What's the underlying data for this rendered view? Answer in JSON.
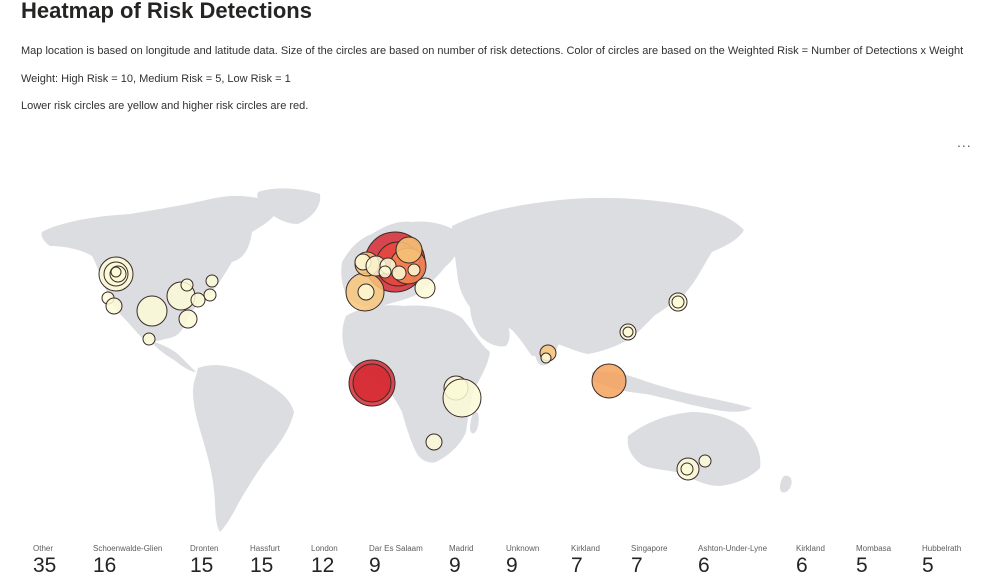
{
  "header": {
    "title": "Heatmap of Risk Detections",
    "description_1": "Map location is based on longitude and latitude data. Size of the circles are based on number of risk detections. Color of circles are based on the Weighted Risk = Number of Detections x Weight",
    "description_2": "Weight: High Risk = 10, Medium Risk = 5, Low Risk = 1",
    "description_3": "Lower risk circles are yellow and higher risk circles are red.",
    "more_options": "..."
  },
  "colors": {
    "low_risk": "#fbfad6",
    "mid_risk": "#f7c77a",
    "high_risk": "#d62b34",
    "land": "#dcdde0"
  },
  "tiles": [
    {
      "label": "Other",
      "value": "35"
    },
    {
      "label": "Schoenwalde-Glien",
      "value": "16"
    },
    {
      "label": "Dronten",
      "value": "15"
    },
    {
      "label": "Hassfurt",
      "value": "15"
    },
    {
      "label": "London",
      "value": "12"
    },
    {
      "label": "Dar Es Salaam",
      "value": "9"
    },
    {
      "label": "Madrid",
      "value": "9"
    },
    {
      "label": "Unknown",
      "value": "9"
    },
    {
      "label": "Kirkland",
      "value": "7"
    },
    {
      "label": "Singapore",
      "value": "7"
    },
    {
      "label": "Ashton-Under-Lyne",
      "value": "6"
    },
    {
      "label": "Kirkland",
      "value": "6"
    },
    {
      "label": "Mombasa",
      "value": "5"
    },
    {
      "label": "Hubbelrath",
      "value": "5"
    }
  ]
}
